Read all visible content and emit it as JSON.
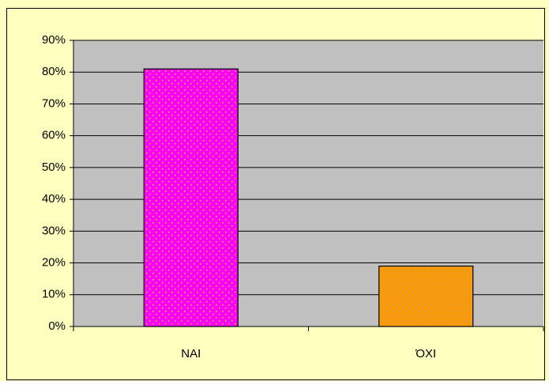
{
  "chart_data": {
    "type": "bar",
    "categories": [
      "ΝΑΙ",
      "ΌΧΙ"
    ],
    "values": [
      81,
      19
    ],
    "colors": [
      "#ff00ff",
      "#ff9900"
    ],
    "pattern_colors": [
      "#ffcc00",
      "#b0a090"
    ],
    "ylim": [
      0,
      90
    ],
    "yticks": [
      {
        "value": 0,
        "label": "0%"
      },
      {
        "value": 10,
        "label": "10%"
      },
      {
        "value": 20,
        "label": "20%"
      },
      {
        "value": 30,
        "label": "30%"
      },
      {
        "value": 40,
        "label": "40%"
      },
      {
        "value": 50,
        "label": "50%"
      },
      {
        "value": 60,
        "label": "60%"
      },
      {
        "value": 70,
        "label": "70%"
      },
      {
        "value": 80,
        "label": "80%"
      },
      {
        "value": 90,
        "label": "90%"
      }
    ],
    "grid": true
  }
}
